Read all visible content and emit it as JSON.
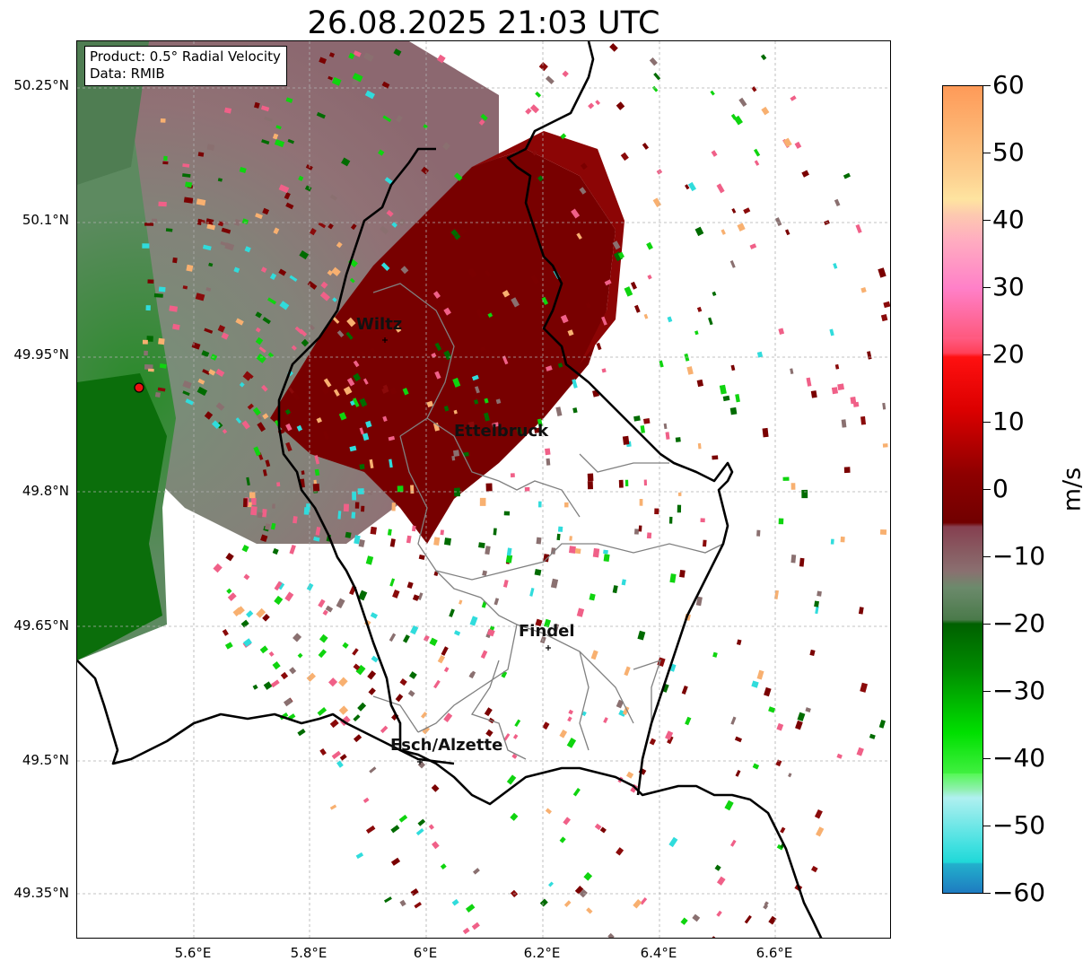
{
  "title": "26.08.2025 21:03 UTC",
  "info": {
    "product": "Product: 0.5° Radial Velocity",
    "source": "Data: RMIB"
  },
  "axes": {
    "lat_ticks": [
      "50.25°N",
      "50.1°N",
      "49.95°N",
      "49.8°N",
      "49.65°N",
      "49.5°N",
      "49.35°N"
    ],
    "lon_ticks": [
      "5.6°E",
      "5.8°E",
      "6°E",
      "6.2°E",
      "6.4°E",
      "6.6°E"
    ]
  },
  "cities": [
    {
      "name": "Wiltz"
    },
    {
      "name": "Ettelbruck"
    },
    {
      "name": "Findel"
    },
    {
      "name": "Esch/Alzette"
    }
  ],
  "colorbar": {
    "unit": "m/s",
    "min": -60,
    "max": 60,
    "tick_labels": [
      "60",
      "50",
      "40",
      "30",
      "20",
      "10",
      "0",
      "−10",
      "−20",
      "−30",
      "−40",
      "−50",
      "−60"
    ]
  },
  "colors": {
    "receding_dark": "#7a0000",
    "receding": "#8a0a0a",
    "pink": "#f06088",
    "zero_gray": "#8a7070",
    "approaching_dark": "#006b00",
    "approaching_green": "#0fd40f",
    "light_cyan": "#30dcdc",
    "orange": "#f8b070",
    "radar_marker": "#ee1111"
  }
}
